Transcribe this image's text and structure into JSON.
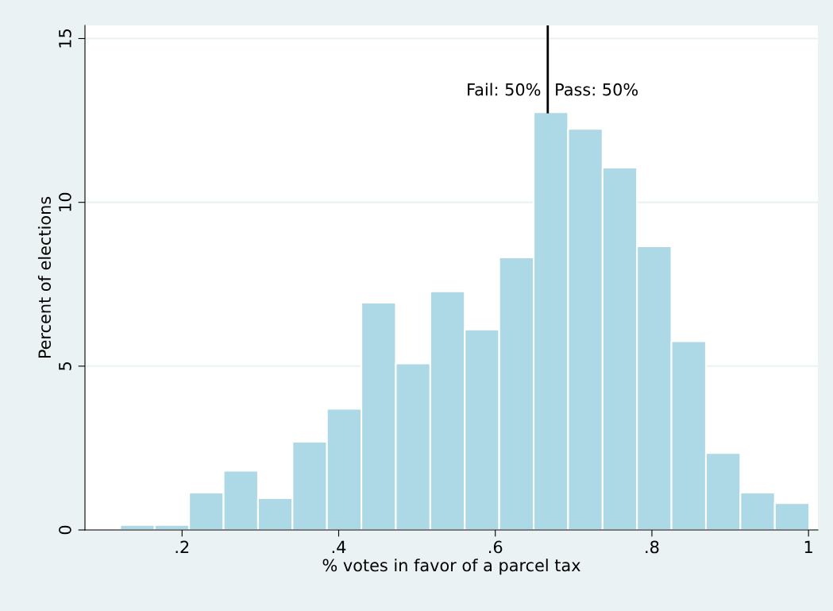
{
  "chart_data": {
    "type": "histogram",
    "xlabel": "% votes in favor of a parcel tax",
    "ylabel": "Percent of elections",
    "bins": [
      0.121,
      0.165,
      0.209,
      0.253,
      0.297,
      0.341,
      0.385,
      0.429,
      0.473,
      0.517,
      0.561,
      0.605,
      0.649,
      0.693,
      0.737,
      0.781,
      0.825,
      0.869,
      0.913,
      0.957,
      1.001
    ],
    "values": [
      0.15,
      0.15,
      1.14,
      1.81,
      0.97,
      2.69,
      3.7,
      6.94,
      5.08,
      7.28,
      6.12,
      8.32,
      12.75,
      12.24,
      11.06,
      8.66,
      5.76,
      2.35,
      1.14,
      0.82
    ],
    "color": "#add8e6",
    "xlim": [
      0.076,
      1.012
    ],
    "ylim": [
      0,
      15.4
    ],
    "xticks": [
      {
        "value": 0.2,
        "label": ".2"
      },
      {
        "value": 0.4,
        "label": ".4"
      },
      {
        "value": 0.6,
        "label": ".6"
      },
      {
        "value": 0.8,
        "label": ".8"
      },
      1
    ],
    "yticks": [
      0,
      5,
      10,
      15
    ],
    "grid": "y",
    "ref_lines": [
      {
        "axis": "x",
        "value": 0.667,
        "color": "#000000"
      }
    ],
    "annotations": [
      {
        "text": "Fail: 50%",
        "x": 0.667,
        "y": 13.4
      },
      {
        "text": "Pass: 50%",
        "x": 0.667,
        "y": 13.4
      }
    ]
  }
}
